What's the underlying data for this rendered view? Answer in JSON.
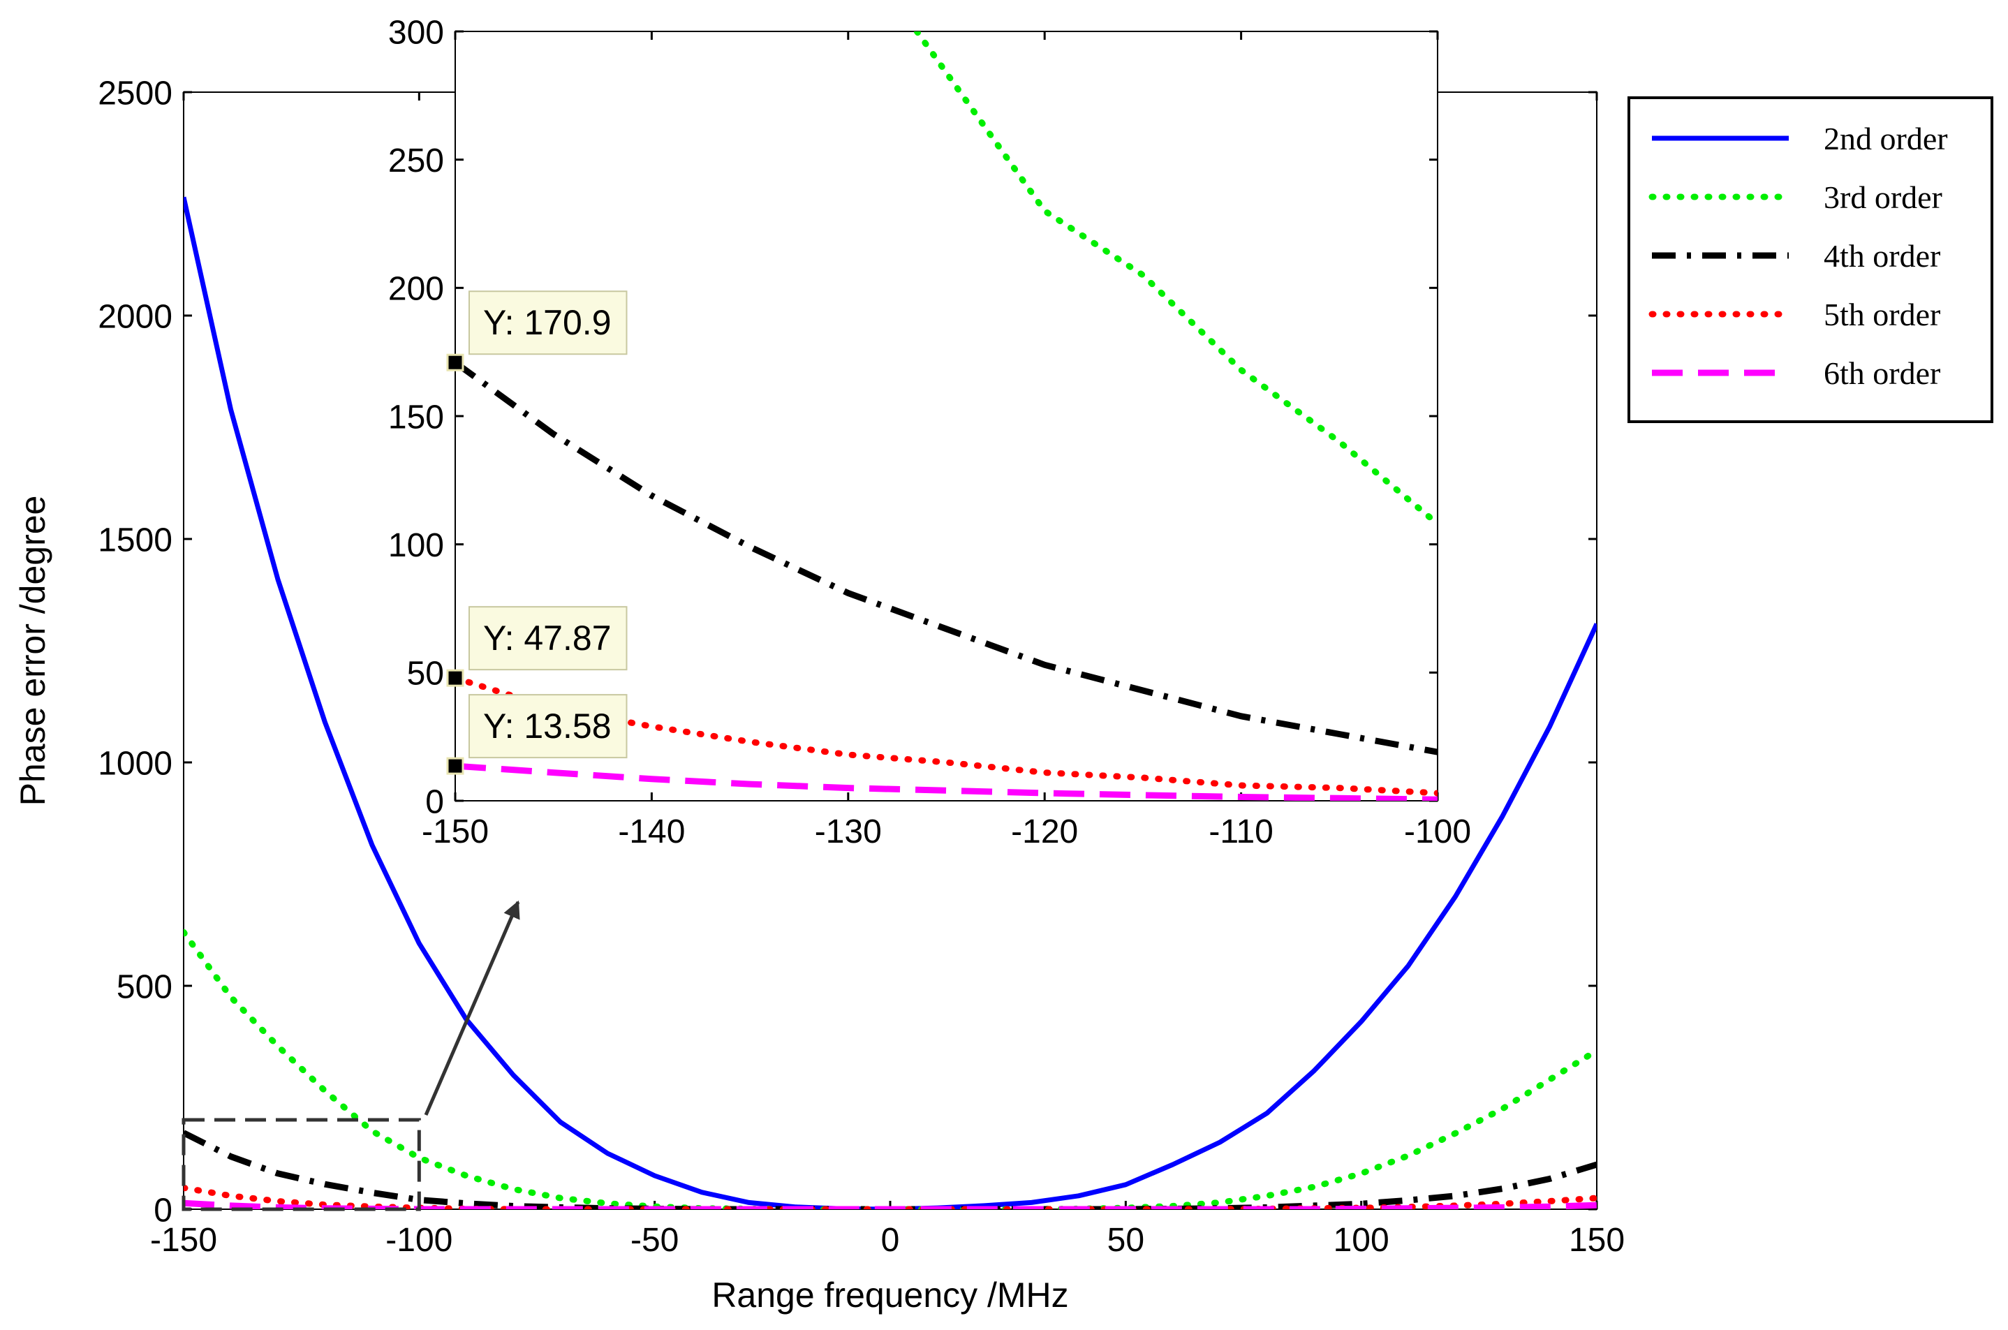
{
  "chart_data": [
    {
      "id": "main",
      "type": "line",
      "title": "",
      "xlabel": "Range frequency /MHz",
      "ylabel": "Phase error /degree",
      "xlim": [
        -150,
        150
      ],
      "ylim": [
        0,
        2500
      ],
      "xticks": [
        -150,
        -100,
        -50,
        0,
        50,
        100,
        150
      ],
      "xtick_labels": [
        "-150",
        "-100",
        "-50",
        "0",
        "50",
        "100",
        "150"
      ],
      "yticks": [
        0,
        500,
        1000,
        1500,
        2000,
        2500
      ],
      "ytick_labels": [
        "0",
        "500",
        "1000",
        "1500",
        "2000",
        "2500"
      ],
      "grid": false,
      "legend_position": "outside-top-right",
      "series": [
        {
          "name": "2nd order",
          "color": "#0000ff",
          "style": "solid",
          "x": [
            -150,
            -140,
            -130,
            -120,
            -110,
            -100,
            -90,
            -80,
            -70,
            -60,
            -50,
            -40,
            -30,
            -20,
            -10,
            0,
            10,
            20,
            30,
            40,
            50,
            60,
            70,
            80,
            90,
            100,
            110,
            120,
            130,
            140,
            150
          ],
          "y": [
            2265,
            1790,
            1410,
            1090,
            815,
            595,
            425,
            300,
            195,
            125,
            75,
            38,
            15,
            5,
            1,
            0,
            3,
            8,
            15,
            30,
            55,
            100,
            150,
            215,
            310,
            420,
            545,
            700,
            880,
            1080,
            1310
          ]
        },
        {
          "name": "3rd order",
          "color": "#00ee00",
          "style": "dotted",
          "x": [
            -150,
            -140,
            -130,
            -120,
            -110,
            -100,
            -90,
            -80,
            -70,
            -60,
            -50,
            -40,
            -30,
            -20,
            -10,
            0,
            10,
            20,
            30,
            40,
            50,
            60,
            70,
            80,
            90,
            100,
            110,
            120,
            130,
            140,
            150
          ],
          "y": [
            620,
            475,
            365,
            265,
            175,
            115,
            75,
            45,
            25,
            13,
            6,
            2,
            1,
            0,
            0,
            0,
            0,
            0,
            0,
            1,
            3,
            7,
            15,
            30,
            50,
            80,
            120,
            170,
            225,
            290,
            355
          ]
        },
        {
          "name": "4th order",
          "color": "#000000",
          "style": "dashdot",
          "x": [
            -150,
            -140,
            -130,
            -120,
            -110,
            -100,
            -90,
            -80,
            -70,
            -60,
            -50,
            -40,
            -30,
            -20,
            -10,
            0,
            10,
            20,
            30,
            40,
            50,
            60,
            70,
            80,
            90,
            100,
            110,
            120,
            130,
            140,
            150
          ],
          "y": [
            170.9,
            118,
            80,
            56,
            37,
            21,
            13,
            7,
            4,
            2,
            1,
            0,
            0,
            0,
            0,
            0,
            0,
            0,
            0,
            0,
            0,
            1,
            2,
            4,
            8,
            12,
            20,
            30,
            46,
            68,
            100
          ]
        },
        {
          "name": "5th order",
          "color": "#ff0000",
          "style": "dotted",
          "x": [
            -150,
            -140,
            -130,
            -120,
            -110,
            -100,
            -90,
            -80,
            -70,
            -60,
            -50,
            -40,
            -30,
            -20,
            -10,
            0,
            10,
            20,
            30,
            40,
            50,
            60,
            70,
            80,
            90,
            100,
            110,
            120,
            130,
            140,
            150
          ],
          "y": [
            47.87,
            30,
            18,
            10,
            6,
            3,
            1,
            0,
            0,
            0,
            0,
            0,
            0,
            0,
            0,
            0,
            0,
            0,
            0,
            0,
            0,
            0,
            0,
            1,
            2,
            3,
            5,
            8,
            12,
            18,
            25
          ]
        },
        {
          "name": "6th order",
          "color": "#ff00ff",
          "style": "dashed",
          "x": [
            -150,
            -140,
            -130,
            -120,
            -110,
            -100,
            -90,
            -80,
            -70,
            -60,
            -50,
            -40,
            -30,
            -20,
            -10,
            0,
            10,
            20,
            30,
            40,
            50,
            60,
            70,
            80,
            90,
            100,
            110,
            120,
            130,
            140,
            150
          ],
          "y": [
            13.58,
            8,
            4,
            2,
            1,
            0,
            0,
            0,
            0,
            0,
            0,
            0,
            0,
            0,
            0,
            0,
            0,
            0,
            0,
            0,
            0,
            0,
            0,
            0,
            0,
            1,
            2,
            3,
            4,
            6,
            9
          ]
        }
      ],
      "zoom_region": {
        "x": [
          -150,
          -100
        ],
        "y": [
          0,
          200
        ]
      }
    },
    {
      "id": "inset",
      "type": "line",
      "title": "",
      "xlim": [
        -150,
        -100
      ],
      "ylim": [
        0,
        300
      ],
      "xticks": [
        -150,
        -140,
        -130,
        -120,
        -110,
        -100
      ],
      "xtick_labels": [
        "-150",
        "-140",
        "-130",
        "-120",
        "-110",
        "-100"
      ],
      "yticks": [
        0,
        50,
        100,
        150,
        200,
        250,
        300
      ],
      "ytick_labels": [
        "0",
        "50",
        "100",
        "150",
        "200",
        "250",
        "300"
      ],
      "grid": false,
      "series": [
        {
          "name": "3rd order",
          "color": "#00ee00",
          "style": "dotted",
          "x": [
            -126.5,
            -120,
            -115,
            -110,
            -105,
            -100
          ],
          "y": [
            300,
            230,
            205,
            168,
            140,
            108
          ]
        },
        {
          "name": "4th order",
          "color": "#000000",
          "style": "dashdot",
          "x": [
            -150,
            -145,
            -140,
            -135,
            -130,
            -125,
            -120,
            -115,
            -110,
            -105,
            -100
          ],
          "y": [
            170.9,
            143,
            119,
            99,
            81,
            67,
            53,
            43,
            33,
            26,
            19
          ]
        },
        {
          "name": "5th order",
          "color": "#ff0000",
          "style": "dotted",
          "x": [
            -150,
            -145,
            -140,
            -135,
            -130,
            -125,
            -120,
            -115,
            -110,
            -105,
            -100
          ],
          "y": [
            47.87,
            36,
            29,
            23,
            18,
            15,
            11,
            9,
            6,
            5,
            3
          ]
        },
        {
          "name": "6th order",
          "color": "#ff00ff",
          "style": "dashed",
          "x": [
            -150,
            -145,
            -140,
            -135,
            -130,
            -125,
            -120,
            -115,
            -110,
            -105,
            -100
          ],
          "y": [
            13.58,
            11,
            8.5,
            6.5,
            5,
            4,
            3,
            2.2,
            1.5,
            1,
            0.5
          ]
        }
      ],
      "datatips": [
        {
          "x": -150,
          "y": 170.9,
          "label": "Y: 170.9"
        },
        {
          "x": -150,
          "y": 47.87,
          "label": "Y: 47.87"
        },
        {
          "x": -150,
          "y": 13.58,
          "label": "Y: 13.58"
        }
      ]
    }
  ],
  "legend": {
    "items": [
      {
        "label": "2nd order",
        "color": "#0000ff",
        "style": "solid"
      },
      {
        "label": "3rd order",
        "color": "#00ee00",
        "style": "dotted"
      },
      {
        "label": "4th order",
        "color": "#000000",
        "style": "dashdot"
      },
      {
        "label": "5th order",
        "color": "#ff0000",
        "style": "dotted"
      },
      {
        "label": "6th order",
        "color": "#ff00ff",
        "style": "dashed"
      }
    ]
  }
}
